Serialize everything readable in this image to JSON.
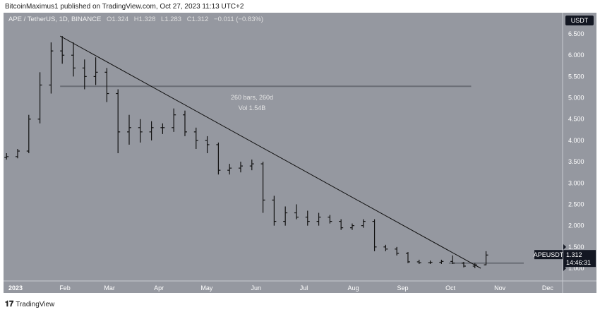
{
  "publisher": "BitcoinMaximus1 published on TradingView.com, Oct 27, 2023 11:13 UTC+2",
  "legend": {
    "symbol": "APE / TetherUS, 1D, BINANCE",
    "o": "O1.324",
    "h": "H1.328",
    "l": "L1.283",
    "c": "C1.312",
    "change": "−0.011 (−0.83%)"
  },
  "currency": "USDT",
  "last_price": {
    "symbol": "APEUSDT",
    "price": "1.312",
    "countdown": "14:46:31"
  },
  "measure": {
    "bars": "260 bars, 260d",
    "vol": "Vol 1.54B"
  },
  "footer": "TradingView",
  "colors": {
    "background": "#9598a0",
    "bars": "#111111",
    "label": "#131722"
  },
  "chart_data": {
    "type": "ohlc",
    "interval": "1D (shown weekly-aggregated)",
    "y_ticks": [
      "1.000",
      "1.500",
      "2.000",
      "2.500",
      "3.000",
      "3.500",
      "4.000",
      "4.500",
      "5.000",
      "5.500",
      "6.000",
      "6.500"
    ],
    "x_ticks": [
      "2023",
      "Feb",
      "Mar",
      "Apr",
      "May",
      "Jun",
      "Jul",
      "Aug",
      "Sep",
      "Oct",
      "Nov",
      "Dec"
    ],
    "ylim": [
      0.75,
      6.9
    ],
    "bars": [
      [
        "2022-12-25",
        3.6,
        3.7,
        3.55,
        3.62
      ],
      [
        "2023-01-01",
        3.62,
        3.8,
        3.58,
        3.75
      ],
      [
        "2023-01-08",
        3.75,
        4.6,
        3.7,
        4.5
      ],
      [
        "2023-01-15",
        4.5,
        5.6,
        4.4,
        5.3
      ],
      [
        "2023-01-22",
        5.3,
        6.3,
        5.1,
        6.1
      ],
      [
        "2023-01-29",
        6.1,
        6.45,
        5.8,
        6.0
      ],
      [
        "2023-02-05",
        6.0,
        6.3,
        5.5,
        5.7
      ],
      [
        "2023-02-12",
        5.7,
        5.9,
        5.2,
        5.5
      ],
      [
        "2023-02-19",
        5.5,
        5.95,
        5.3,
        5.6
      ],
      [
        "2023-02-26",
        5.6,
        5.7,
        4.9,
        5.1
      ],
      [
        "2023-03-05",
        5.1,
        5.2,
        3.7,
        4.2
      ],
      [
        "2023-03-12",
        4.2,
        4.6,
        3.9,
        4.3
      ],
      [
        "2023-03-19",
        4.3,
        4.5,
        3.95,
        4.2
      ],
      [
        "2023-03-26",
        4.2,
        4.45,
        4.0,
        4.3
      ],
      [
        "2023-04-02",
        4.3,
        4.4,
        4.15,
        4.3
      ],
      [
        "2023-04-09",
        4.3,
        4.75,
        4.2,
        4.6
      ],
      [
        "2023-04-16",
        4.6,
        4.7,
        4.1,
        4.2
      ],
      [
        "2023-04-23",
        4.2,
        4.3,
        3.8,
        4.0
      ],
      [
        "2023-04-30",
        4.0,
        4.1,
        3.7,
        3.9
      ],
      [
        "2023-05-07",
        3.9,
        3.95,
        3.2,
        3.3
      ],
      [
        "2023-05-14",
        3.3,
        3.45,
        3.2,
        3.35
      ],
      [
        "2023-05-21",
        3.35,
        3.5,
        3.25,
        3.4
      ],
      [
        "2023-05-28",
        3.4,
        3.55,
        3.3,
        3.45
      ],
      [
        "2023-06-04",
        3.45,
        3.5,
        2.3,
        2.6
      ],
      [
        "2023-06-11",
        2.6,
        2.7,
        2.0,
        2.1
      ],
      [
        "2023-06-18",
        2.1,
        2.45,
        2.0,
        2.3
      ],
      [
        "2023-06-25",
        2.3,
        2.5,
        2.15,
        2.2
      ],
      [
        "2023-07-02",
        2.2,
        2.35,
        2.0,
        2.1
      ],
      [
        "2023-07-09",
        2.1,
        2.3,
        2.0,
        2.2
      ],
      [
        "2023-07-16",
        2.2,
        2.25,
        2.05,
        2.1
      ],
      [
        "2023-07-23",
        2.1,
        2.15,
        1.9,
        1.95
      ],
      [
        "2023-07-30",
        1.95,
        2.05,
        1.9,
        2.0
      ],
      [
        "2023-08-06",
        2.0,
        2.15,
        1.95,
        2.1
      ],
      [
        "2023-08-13",
        2.1,
        2.15,
        1.4,
        1.5
      ],
      [
        "2023-08-20",
        1.5,
        1.55,
        1.4,
        1.45
      ],
      [
        "2023-08-27",
        1.45,
        1.5,
        1.3,
        1.35
      ],
      [
        "2023-09-03",
        1.35,
        1.38,
        1.12,
        1.15
      ],
      [
        "2023-09-10",
        1.15,
        1.2,
        1.1,
        1.13
      ],
      [
        "2023-09-17",
        1.13,
        1.18,
        1.1,
        1.14
      ],
      [
        "2023-09-24",
        1.14,
        1.2,
        1.1,
        1.16
      ],
      [
        "2023-10-01",
        1.16,
        1.3,
        1.1,
        1.12
      ],
      [
        "2023-10-08",
        1.12,
        1.15,
        1.02,
        1.05
      ],
      [
        "2023-10-15",
        1.05,
        1.12,
        1.0,
        1.08
      ],
      [
        "2023-10-22",
        1.08,
        1.4,
        1.07,
        1.31
      ]
    ],
    "trendline": [
      [
        "2023-01-29",
        6.45
      ],
      [
        "2023-10-20",
        1.0
      ]
    ],
    "range_line": [
      [
        "2023-01-29",
        5.27
      ],
      [
        "2023-10-14",
        5.27
      ]
    ],
    "support_line": [
      [
        "2023-09-30",
        1.12
      ],
      [
        "2023-11-16",
        1.12
      ]
    ]
  }
}
